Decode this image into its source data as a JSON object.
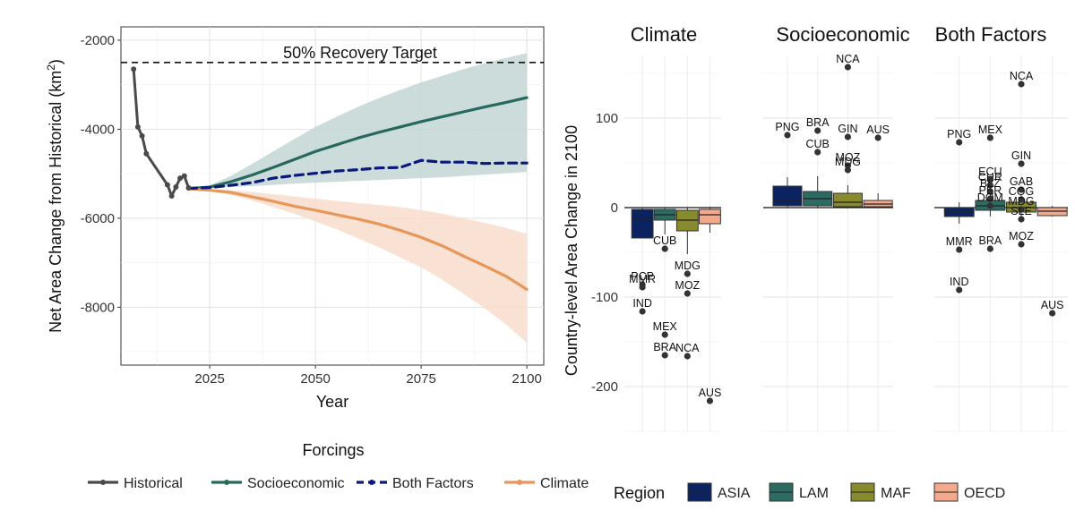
{
  "colors": {
    "historical": "#4a4a4a",
    "socioeconomic": "#27695e",
    "both_factors": "#0a1a7c",
    "climate": "#e8975a",
    "socio_ribbon": "#c3d6d3",
    "climate_ribbon": "#f8dccb",
    "ASIA": "#0b2461",
    "LAM": "#2b6b62",
    "MAF": "#878a2d",
    "OECD": "#f4a98c",
    "point": "#333333"
  },
  "chart_data": [
    {
      "type": "line",
      "xlabel": "Year",
      "ylabel_main": "Net Area Change from Historical (km",
      "ylabel_sup": "2",
      "ylabel_end": ")",
      "xlim": [
        2004,
        2104
      ],
      "ylim": [
        -9300,
        -1700
      ],
      "xticks": [
        2025,
        2050,
        2075,
        2100
      ],
      "xtick_labels": [
        "2025",
        "2050",
        "2075",
        "2100"
      ],
      "yticks": [
        -8000,
        -6000,
        -4000,
        -2000
      ],
      "ytick_labels": [
        "-8000",
        "-6000",
        "-4000",
        "-2000"
      ],
      "reference_line": {
        "y": -2500,
        "label": "50% Recovery Target"
      },
      "legend_title": "Forcings",
      "legend_position": "bottom",
      "series": [
        {
          "name": "Historical",
          "key": "historical",
          "style": "line-points",
          "x": [
            2007,
            2008,
            2009,
            2010,
            2015,
            2016,
            2017,
            2018,
            2019,
            2020
          ],
          "y": [
            -2650,
            -3950,
            -4150,
            -4550,
            -5250,
            -5500,
            -5300,
            -5100,
            -5050,
            -5320
          ]
        },
        {
          "name": "Socioeconomic",
          "key": "socioeconomic",
          "style": "solid",
          "x": [
            2020,
            2025,
            2030,
            2035,
            2040,
            2045,
            2050,
            2055,
            2060,
            2065,
            2070,
            2075,
            2080,
            2085,
            2090,
            2095,
            2100
          ],
          "y": [
            -5330,
            -5300,
            -5180,
            -5030,
            -4860,
            -4680,
            -4500,
            -4350,
            -4200,
            -4070,
            -3950,
            -3830,
            -3720,
            -3610,
            -3500,
            -3400,
            -3290
          ],
          "ribbon_low": [
            -5330,
            -5330,
            -5300,
            -5280,
            -5250,
            -5220,
            -5200,
            -5180,
            -5160,
            -5140,
            -5120,
            -5100,
            -5080,
            -5050,
            -5020,
            -4990,
            -4960
          ],
          "ribbon_high": [
            -5330,
            -5260,
            -5050,
            -4780,
            -4500,
            -4220,
            -3950,
            -3720,
            -3500,
            -3300,
            -3120,
            -2950,
            -2800,
            -2650,
            -2520,
            -2400,
            -2290
          ]
        },
        {
          "name": "Both Factors",
          "key": "both_factors",
          "style": "dashed",
          "x": [
            2020,
            2025,
            2030,
            2035,
            2040,
            2045,
            2050,
            2055,
            2060,
            2065,
            2070,
            2075,
            2080,
            2085,
            2090,
            2095,
            2100
          ],
          "y": [
            -5330,
            -5310,
            -5260,
            -5200,
            -5100,
            -5040,
            -4990,
            -4940,
            -4910,
            -4870,
            -4860,
            -4700,
            -4740,
            -4740,
            -4770,
            -4760,
            -4760
          ]
        },
        {
          "name": "Climate",
          "key": "climate",
          "style": "solid",
          "x": [
            2020,
            2025,
            2030,
            2035,
            2040,
            2045,
            2050,
            2055,
            2060,
            2065,
            2070,
            2075,
            2080,
            2085,
            2090,
            2095,
            2100
          ],
          "y": [
            -5340,
            -5370,
            -5420,
            -5520,
            -5620,
            -5730,
            -5820,
            -5920,
            -6020,
            -6130,
            -6270,
            -6430,
            -6620,
            -6850,
            -7070,
            -7300,
            -7600
          ],
          "ribbon_low": [
            -5340,
            -5390,
            -5480,
            -5600,
            -5750,
            -5900,
            -6070,
            -6250,
            -6450,
            -6650,
            -6880,
            -7100,
            -7380,
            -7700,
            -8020,
            -8380,
            -8800
          ],
          "ribbon_high": [
            -5340,
            -5350,
            -5370,
            -5410,
            -5460,
            -5510,
            -5560,
            -5610,
            -5660,
            -5700,
            -5750,
            -5820,
            -5900,
            -6000,
            -6100,
            -6220,
            -6350
          ]
        }
      ]
    },
    {
      "type": "box",
      "ylabel": "Country-level Area Change in 2100",
      "ylim": [
        -250,
        170
      ],
      "yticks": [
        -200,
        -100,
        0,
        100
      ],
      "ytick_labels": [
        "-200",
        "-100",
        "0",
        "100"
      ],
      "categories": [
        "ASIA",
        "LAM",
        "MAF",
        "OECD"
      ],
      "legend_title": "Region",
      "legend_position": "bottom",
      "facets": [
        {
          "title": "Climate",
          "boxes": [
            {
              "region": "ASIA",
              "q1": -34,
              "median": -12,
              "q3": -2,
              "whisker_low": -34,
              "whisker_high": 0
            },
            {
              "region": "LAM",
              "q1": -14,
              "median": -8,
              "q3": -2,
              "whisker_low": -30,
              "whisker_high": 0
            },
            {
              "region": "MAF",
              "q1": -26,
              "median": -14,
              "q3": -3,
              "whisker_low": -52,
              "whisker_high": 0
            },
            {
              "region": "OECD",
              "q1": -18,
              "median": -8,
              "q3": -2,
              "whisker_low": -28,
              "whisker_high": 1
            }
          ],
          "outliers": [
            {
              "region": "ASIA",
              "y": -86,
              "label": "PCP"
            },
            {
              "region": "ASIA",
              "y": -89,
              "label": "MMR"
            },
            {
              "region": "ASIA",
              "y": -116,
              "label": "IND"
            },
            {
              "region": "LAM",
              "y": -46,
              "label": "CUB"
            },
            {
              "region": "LAM",
              "y": -142,
              "label": "MEX"
            },
            {
              "region": "LAM",
              "y": -165,
              "label": "BRA"
            },
            {
              "region": "MAF",
              "y": -74,
              "label": "MDG"
            },
            {
              "region": "MAF",
              "y": -96,
              "label": "MOZ"
            },
            {
              "region": "MAF",
              "y": -166,
              "label": "NCA"
            },
            {
              "region": "OECD",
              "y": -216,
              "label": "AUS"
            }
          ]
        },
        {
          "title": "Socioeconomic",
          "boxes": [
            {
              "region": "ASIA",
              "q1": 2,
              "median": 8,
              "q3": 24,
              "whisker_low": 0,
              "whisker_high": 34
            },
            {
              "region": "LAM",
              "q1": 2,
              "median": 10,
              "q3": 18,
              "whisker_low": 0,
              "whisker_high": 35
            },
            {
              "region": "MAF",
              "q1": 1,
              "median": 6,
              "q3": 16,
              "whisker_low": -1,
              "whisker_high": 25
            },
            {
              "region": "OECD",
              "q1": 1,
              "median": 4,
              "q3": 8,
              "whisker_low": 0,
              "whisker_high": 16
            }
          ],
          "outliers": [
            {
              "region": "ASIA",
              "y": 81,
              "label": "PNG"
            },
            {
              "region": "LAM",
              "y": 86,
              "label": "BRA"
            },
            {
              "region": "LAM",
              "y": 62,
              "label": "CUB"
            },
            {
              "region": "MAF",
              "y": 157,
              "label": "NCA"
            },
            {
              "region": "MAF",
              "y": 79,
              "label": "GIN"
            },
            {
              "region": "MAF",
              "y": 47,
              "label": "MOZ"
            },
            {
              "region": "MAF",
              "y": 42,
              "label": "MDG"
            },
            {
              "region": "OECD",
              "y": 78,
              "label": "AUS"
            }
          ]
        },
        {
          "title": "Both Factors",
          "boxes": [
            {
              "region": "ASIA",
              "q1": -10,
              "median": -4,
              "q3": 0,
              "whisker_low": -18,
              "whisker_high": 6
            },
            {
              "region": "LAM",
              "q1": -3,
              "median": 2,
              "q3": 8,
              "whisker_low": -10,
              "whisker_high": 20
            },
            {
              "region": "MAF",
              "q1": -5,
              "median": 0,
              "q3": 6,
              "whisker_low": -14,
              "whisker_high": 14
            },
            {
              "region": "OECD",
              "q1": -9,
              "median": -4,
              "q3": 0,
              "whisker_low": -10,
              "whisker_high": 2
            }
          ],
          "outliers": [
            {
              "region": "ASIA",
              "y": 73,
              "label": "PNG"
            },
            {
              "region": "ASIA",
              "y": -47,
              "label": "MMR"
            },
            {
              "region": "ASIA",
              "y": -92,
              "label": "IND"
            },
            {
              "region": "LAM",
              "y": 78,
              "label": "MEX"
            },
            {
              "region": "LAM",
              "y": 31,
              "label": "ECU"
            },
            {
              "region": "LAM",
              "y": 25,
              "label": "CHR"
            },
            {
              "region": "LAM",
              "y": 18,
              "label": "BLZ"
            },
            {
              "region": "LAM",
              "y": 10,
              "label": "PER"
            },
            {
              "region": "LAM",
              "y": 2,
              "label": "DOM"
            },
            {
              "region": "LAM",
              "y": -46,
              "label": "BRA"
            },
            {
              "region": "MAF",
              "y": 138,
              "label": "NCA"
            },
            {
              "region": "MAF",
              "y": 49,
              "label": "GIN"
            },
            {
              "region": "MAF",
              "y": 20,
              "label": "GAB"
            },
            {
              "region": "MAF",
              "y": 9,
              "label": "COG"
            },
            {
              "region": "MAF",
              "y": -2,
              "label": "MDG"
            },
            {
              "region": "MAF",
              "y": -13,
              "label": "SLE"
            },
            {
              "region": "MAF",
              "y": -41,
              "label": "MOZ"
            },
            {
              "region": "OECD",
              "y": -118,
              "label": "AUS"
            }
          ]
        }
      ]
    }
  ]
}
